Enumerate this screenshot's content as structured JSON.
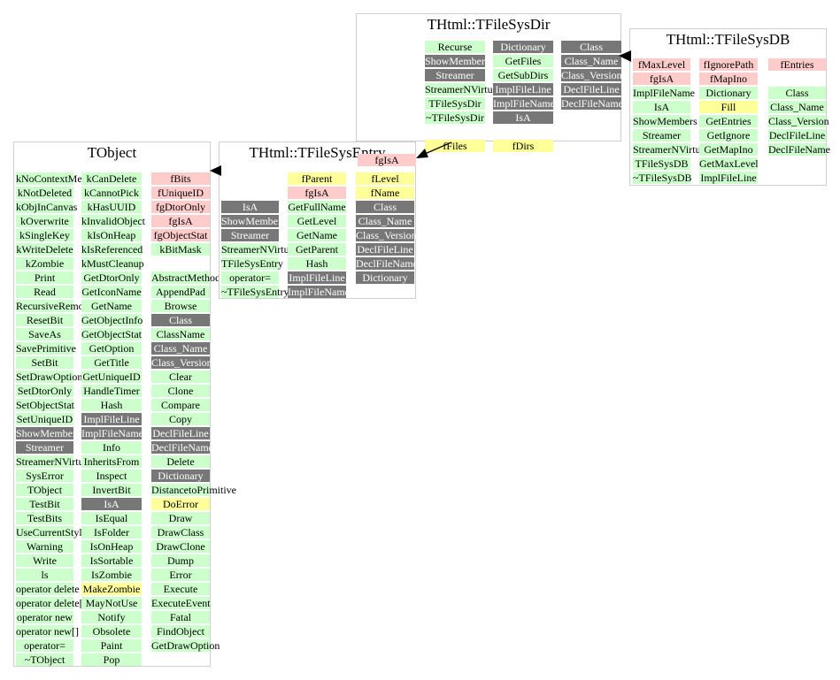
{
  "colors": {
    "method": "#ccffcc",
    "data": "#ffcccc",
    "highlight": "#ffff99",
    "inherited": "#777777",
    "border": "#cfcfcf"
  },
  "classes": [
    {
      "id": "TObject",
      "title": "TObject",
      "columns": [
        [
          [
            "kNoContextMenu",
            "m"
          ],
          [
            "kNotDeleted",
            "m"
          ],
          [
            "kObjInCanvas",
            "m"
          ],
          [
            "kOverwrite",
            "m"
          ],
          [
            "kSingleKey",
            "m"
          ],
          [
            "kWriteDelete",
            "m"
          ],
          [
            "kZombie",
            "m"
          ],
          [
            "Print",
            "m"
          ],
          [
            "Read",
            "m"
          ],
          [
            "RecursiveRemove",
            "m"
          ],
          [
            "ResetBit",
            "m"
          ],
          [
            "SaveAs",
            "m"
          ],
          [
            "SavePrimitive",
            "m"
          ],
          [
            "SetBit",
            "m"
          ],
          [
            "SetDrawOption",
            "m"
          ],
          [
            "SetDtorOnly",
            "m"
          ],
          [
            "SetObjectStat",
            "m"
          ],
          [
            "SetUniqueID",
            "m"
          ],
          [
            "ShowMembers",
            "g"
          ],
          [
            "Streamer",
            "g"
          ],
          [
            "StreamerNVirtual",
            "m"
          ],
          [
            "SysError",
            "m"
          ],
          [
            "TObject",
            "m"
          ],
          [
            "TestBit",
            "m"
          ],
          [
            "TestBits",
            "m"
          ],
          [
            "UseCurrentStyle",
            "m"
          ],
          [
            "Warning",
            "m"
          ],
          [
            "Write",
            "m"
          ],
          [
            "ls",
            "m"
          ],
          [
            "operator delete",
            "m"
          ],
          [
            "operator delete[]",
            "m"
          ],
          [
            "operator new",
            "m"
          ],
          [
            "operator new[]",
            "m"
          ],
          [
            "operator=",
            "m"
          ],
          [
            "~TObject",
            "m"
          ]
        ],
        [
          [
            "kCanDelete",
            "m"
          ],
          [
            "kCannotPick",
            "m"
          ],
          [
            "kHasUUID",
            "m"
          ],
          [
            "kInvalidObject",
            "m"
          ],
          [
            "kIsOnHeap",
            "m"
          ],
          [
            "kIsReferenced",
            "m"
          ],
          [
            "kMustCleanup",
            "m"
          ],
          [
            "GetDtorOnly",
            "m"
          ],
          [
            "GetIconName",
            "m"
          ],
          [
            "GetName",
            "m"
          ],
          [
            "GetObjectInfo",
            "m"
          ],
          [
            "GetObjectStat",
            "m"
          ],
          [
            "GetOption",
            "m"
          ],
          [
            "GetTitle",
            "m"
          ],
          [
            "GetUniqueID",
            "m"
          ],
          [
            "HandleTimer",
            "m"
          ],
          [
            "Hash",
            "m"
          ],
          [
            "ImplFileLine",
            "g"
          ],
          [
            "ImplFileName",
            "g"
          ],
          [
            "Info",
            "m"
          ],
          [
            "InheritsFrom",
            "m"
          ],
          [
            "Inspect",
            "m"
          ],
          [
            "InvertBit",
            "m"
          ],
          [
            "IsA",
            "g"
          ],
          [
            "IsEqual",
            "m"
          ],
          [
            "IsFolder",
            "m"
          ],
          [
            "IsOnHeap",
            "m"
          ],
          [
            "IsSortable",
            "m"
          ],
          [
            "IsZombie",
            "m"
          ],
          [
            "MakeZombie",
            "y"
          ],
          [
            "MayNotUse",
            "m"
          ],
          [
            "Notify",
            "m"
          ],
          [
            "Obsolete",
            "m"
          ],
          [
            "Paint",
            "m"
          ],
          [
            "Pop",
            "m"
          ]
        ],
        [
          [
            "fBits",
            "d"
          ],
          [
            "fUniqueID",
            "d"
          ],
          [
            "fgDtorOnly",
            "d"
          ],
          [
            "fgIsA",
            "d"
          ],
          [
            "fgObjectStat",
            "d"
          ],
          [
            "kBitMask",
            "m"
          ],
          [
            "",
            ""
          ],
          [
            "AbstractMethod",
            "m"
          ],
          [
            "AppendPad",
            "m"
          ],
          [
            "Browse",
            "m"
          ],
          [
            "Class",
            "g"
          ],
          [
            "ClassName",
            "m"
          ],
          [
            "Class_Name",
            "g"
          ],
          [
            "Class_Version",
            "g"
          ],
          [
            "Clear",
            "m"
          ],
          [
            "Clone",
            "m"
          ],
          [
            "Compare",
            "m"
          ],
          [
            "Copy",
            "m"
          ],
          [
            "DeclFileLine",
            "g"
          ],
          [
            "DeclFileName",
            "g"
          ],
          [
            "Delete",
            "m"
          ],
          [
            "Dictionary",
            "g"
          ],
          [
            "DistancetoPrimitive",
            "m"
          ],
          [
            "DoError",
            "y"
          ],
          [
            "Draw",
            "m"
          ],
          [
            "DrawClass",
            "m"
          ],
          [
            "DrawClone",
            "m"
          ],
          [
            "Dump",
            "m"
          ],
          [
            "Error",
            "m"
          ],
          [
            "Execute",
            "m"
          ],
          [
            "ExecuteEvent",
            "m"
          ],
          [
            "Fatal",
            "m"
          ],
          [
            "FindObject",
            "m"
          ],
          [
            "GetDrawOption",
            "m"
          ]
        ]
      ]
    },
    {
      "id": "TFileSysEntry",
      "title": "THtml::TFileSysEntry",
      "columns": [
        [
          [
            "",
            ""
          ],
          [
            "",
            ""
          ],
          [
            "IsA",
            "g"
          ],
          [
            "ShowMembers",
            "g"
          ],
          [
            "Streamer",
            "g"
          ],
          [
            "StreamerNVirtual",
            "m"
          ],
          [
            "TFileSysEntry",
            "m"
          ],
          [
            "operator=",
            "m"
          ],
          [
            "~TFileSysEntry",
            "m"
          ]
        ],
        [
          [
            "fParent",
            "y"
          ],
          [
            "fgIsA",
            "d"
          ],
          [
            "GetFullName",
            "m"
          ],
          [
            "GetLevel",
            "m"
          ],
          [
            "GetName",
            "m"
          ],
          [
            "GetParent",
            "m"
          ],
          [
            "Hash",
            "m"
          ],
          [
            "ImplFileLine",
            "g"
          ],
          [
            "ImplFileName",
            "g"
          ]
        ],
        [
          [
            "fLevel",
            "y"
          ],
          [
            "fName",
            "y"
          ],
          [
            "Class",
            "g"
          ],
          [
            "Class_Name",
            "g"
          ],
          [
            "Class_Version",
            "g"
          ],
          [
            "DeclFileLine",
            "g"
          ],
          [
            "DeclFileName",
            "g"
          ],
          [
            "Dictionary",
            "g"
          ]
        ]
      ]
    },
    {
      "id": "TFileSysDir",
      "title": "THtml::TFileSysDir",
      "columns": [
        [
          [
            "",
            ""
          ],
          [
            "",
            ""
          ],
          [
            "",
            ""
          ],
          [
            "",
            ""
          ],
          [
            "",
            ""
          ],
          [
            "",
            ""
          ],
          [
            "",
            ""
          ],
          [
            "",
            ""
          ],
          [
            "fgIsA",
            "d"
          ]
        ],
        [
          [
            "Recurse",
            "m"
          ],
          [
            "ShowMembers",
            "g"
          ],
          [
            "Streamer",
            "g"
          ],
          [
            "StreamerNVirtual",
            "m"
          ],
          [
            "TFileSysDir",
            "m"
          ],
          [
            "~TFileSysDir",
            "m"
          ],
          [
            "",
            ""
          ],
          [
            "fFiles",
            "y"
          ]
        ],
        [
          [
            "Dictionary",
            "g"
          ],
          [
            "GetFiles",
            "m"
          ],
          [
            "GetSubDirs",
            "m"
          ],
          [
            "ImplFileLine",
            "g"
          ],
          [
            "ImplFileName",
            "g"
          ],
          [
            "IsA",
            "g"
          ],
          [
            "",
            ""
          ],
          [
            "fDirs",
            "y"
          ]
        ],
        [
          [
            "Class",
            "g"
          ],
          [
            "Class_Name",
            "g"
          ],
          [
            "Class_Version",
            "g"
          ],
          [
            "DeclFileLine",
            "g"
          ],
          [
            "DeclFileName",
            "g"
          ]
        ]
      ]
    },
    {
      "id": "TFileSysDB",
      "title": "THtml::TFileSysDB",
      "columns": [
        [
          [
            "fMaxLevel",
            "d"
          ],
          [
            "fgIsA",
            "d"
          ],
          [
            "ImplFileName",
            "m"
          ],
          [
            "IsA",
            "m"
          ],
          [
            "ShowMembers",
            "m"
          ],
          [
            "Streamer",
            "m"
          ],
          [
            "StreamerNVirtual",
            "m"
          ],
          [
            "TFileSysDB",
            "m"
          ],
          [
            "~TFileSysDB",
            "m"
          ]
        ],
        [
          [
            "fIgnorePath",
            "d"
          ],
          [
            "fMapIno",
            "d"
          ],
          [
            "Dictionary",
            "m"
          ],
          [
            "Fill",
            "y"
          ],
          [
            "GetEntries",
            "m"
          ],
          [
            "GetIgnore",
            "m"
          ],
          [
            "GetMapIno",
            "m"
          ],
          [
            "GetMaxLevel",
            "m"
          ],
          [
            "ImplFileLine",
            "m"
          ]
        ],
        [
          [
            "fEntries",
            "d"
          ],
          [
            "",
            ""
          ],
          [
            "Class",
            "m"
          ],
          [
            "Class_Name",
            "m"
          ],
          [
            "Class_Version",
            "m"
          ],
          [
            "DeclFileLine",
            "m"
          ],
          [
            "DeclFileName",
            "m"
          ]
        ]
      ]
    }
  ]
}
